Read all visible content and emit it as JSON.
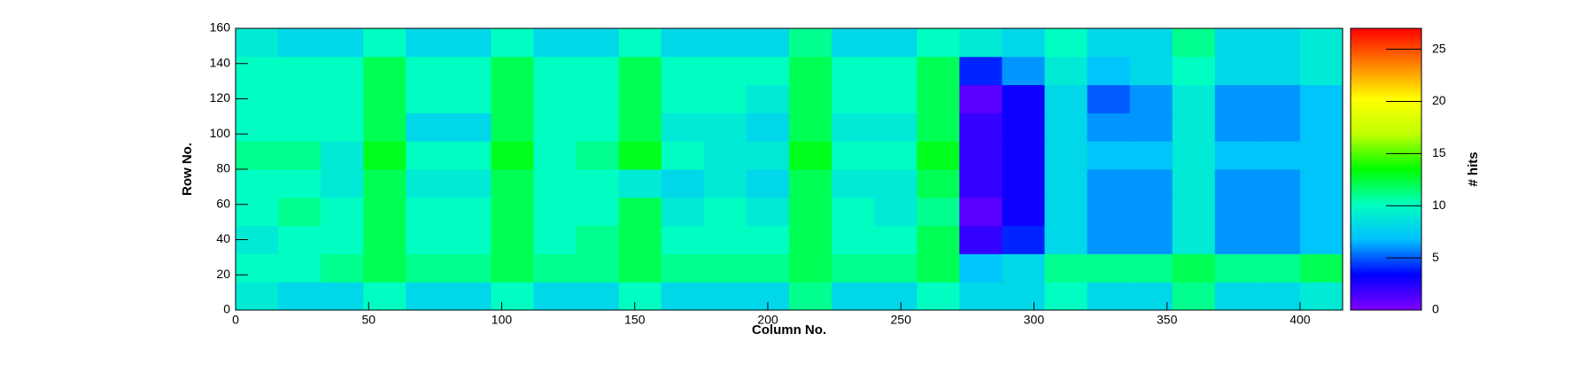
{
  "chart_data": {
    "type": "heatmap",
    "xlabel": "Column No.",
    "ylabel": "Row No.",
    "zlabel": "# hits",
    "xbins": [
      0,
      16,
      32,
      48,
      64,
      80,
      96,
      112,
      128,
      144,
      160,
      176,
      192,
      208,
      224,
      240,
      256,
      272,
      288,
      304,
      320,
      336,
      352,
      368,
      384,
      400,
      416
    ],
    "ybins": [
      0,
      16,
      32,
      48,
      64,
      80,
      96,
      112,
      128,
      144,
      160
    ],
    "z": [
      [
        9,
        8,
        8,
        10,
        8,
        8,
        10,
        8,
        8,
        10,
        8,
        8,
        8,
        11,
        8,
        8,
        10,
        8,
        8,
        10,
        8,
        8,
        11,
        8,
        8,
        9
      ],
      [
        10,
        10,
        11,
        12,
        11,
        11,
        12,
        11,
        11,
        12,
        11,
        11,
        11,
        12,
        11,
        11,
        12,
        7,
        8,
        11,
        11,
        11,
        12,
        11,
        11,
        12
      ],
      [
        9,
        10,
        10,
        12,
        10,
        10,
        12,
        10,
        11,
        12,
        10,
        10,
        10,
        12,
        10,
        10,
        12,
        2,
        4,
        8,
        6,
        6,
        9,
        6,
        6,
        7
      ],
      [
        10,
        11,
        10,
        12,
        10,
        10,
        12,
        10,
        10,
        12,
        9,
        10,
        9,
        12,
        10,
        9,
        11,
        1,
        3,
        8,
        6,
        6,
        9,
        6,
        6,
        7
      ],
      [
        10,
        10,
        9,
        12,
        9,
        9,
        12,
        10,
        10,
        9,
        8,
        9,
        8,
        12,
        9,
        9,
        12,
        2,
        3,
        8,
        6,
        6,
        9,
        6,
        6,
        7
      ],
      [
        11,
        11,
        9,
        13,
        10,
        10,
        13,
        10,
        11,
        13,
        10,
        9,
        9,
        13,
        10,
        10,
        13,
        2,
        3,
        8,
        7,
        7,
        9,
        7,
        7,
        7
      ],
      [
        10,
        10,
        10,
        12,
        8,
        8,
        12,
        10,
        10,
        12,
        9,
        9,
        8,
        12,
        9,
        9,
        12,
        2,
        3,
        8,
        6,
        6,
        9,
        6,
        6,
        7
      ],
      [
        10,
        10,
        10,
        12,
        10,
        10,
        12,
        10,
        10,
        12,
        10,
        10,
        9,
        12,
        10,
        10,
        12,
        1,
        3,
        8,
        5,
        6,
        9,
        6,
        6,
        7
      ],
      [
        10,
        10,
        10,
        12,
        10,
        10,
        12,
        10,
        10,
        12,
        10,
        10,
        10,
        12,
        10,
        10,
        12,
        4,
        6,
        9,
        7,
        8,
        10,
        8,
        8,
        9
      ],
      [
        9,
        8,
        8,
        10,
        8,
        8,
        10,
        8,
        8,
        10,
        8,
        8,
        8,
        11,
        8,
        8,
        10,
        9,
        8,
        10,
        8,
        8,
        11,
        8,
        8,
        9
      ]
    ],
    "xlim": [
      0,
      416
    ],
    "ylim": [
      0,
      160
    ],
    "zlim": [
      0,
      27
    ],
    "xticks": [
      0,
      50,
      100,
      150,
      200,
      250,
      300,
      350,
      400
    ],
    "yticks": [
      0,
      20,
      40,
      60,
      80,
      100,
      120,
      140,
      160
    ],
    "zticks": [
      0,
      5,
      10,
      15,
      20,
      25
    ],
    "colormap": [
      "#8000ff",
      "#0000ff",
      "#00c0ff",
      "#00ffc0",
      "#00ff00",
      "#c0ff00",
      "#ffff00",
      "#ff8000",
      "#ff0000"
    ]
  }
}
